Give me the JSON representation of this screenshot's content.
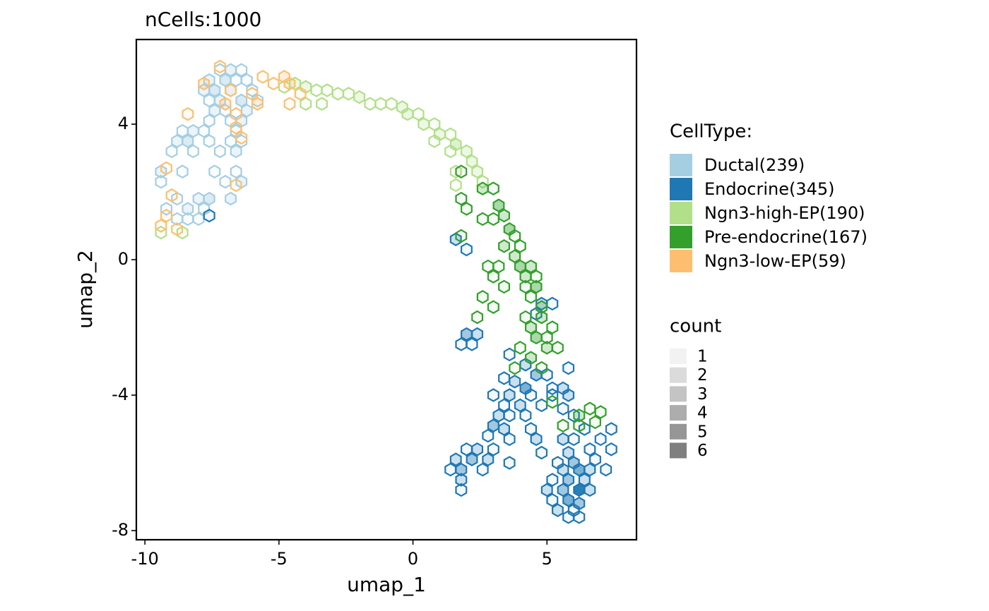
{
  "chart_data": {
    "type": "hexbin",
    "title": "nCells:1000",
    "x_label": "umap_1",
    "y_label": "umap_2",
    "xlim": [
      -10.32,
      8.34
    ],
    "ylim": [
      -8.27,
      6.5
    ],
    "xticks": [
      -10,
      -5,
      0,
      5
    ],
    "yticks": [
      -8,
      -4,
      0,
      4
    ],
    "legend_title": "CellType:",
    "series": [
      {
        "name": "Ductal(239)",
        "color": "#a6cee3",
        "x": [
          -7.2,
          -6.8,
          -6.4,
          -7.6,
          -7.0,
          -6.6,
          -6.2,
          -7.8,
          -7.4,
          -6.8,
          -6.0,
          -7.6,
          -7.2,
          -6.4,
          -5.8,
          -7.4,
          -7.0,
          -6.2,
          -7.6,
          -6.8,
          -6.4,
          -8.6,
          -8.2,
          -7.8,
          -6.6,
          -8.8,
          -8.4,
          -7.6,
          -6.8,
          -6.4,
          -9.0,
          -8.2,
          -7.2,
          -6.6,
          -9.4,
          -8.6,
          -7.4,
          -6.6,
          -9.4,
          -7.0,
          -6.4,
          -8.8,
          -8.0,
          -7.6,
          -6.8,
          -9.2,
          -8.4,
          -7.8,
          -8.8,
          -8.4,
          -8.0
        ],
        "y": [
          5.6,
          5.6,
          5.6,
          5.3,
          5.3,
          5.3,
          5.3,
          5.0,
          5.0,
          5.0,
          5.0,
          4.7,
          4.7,
          4.7,
          4.7,
          4.4,
          4.4,
          4.4,
          4.1,
          4.1,
          4.1,
          3.8,
          3.8,
          3.8,
          3.8,
          3.5,
          3.5,
          3.5,
          3.5,
          3.5,
          3.2,
          3.2,
          3.2,
          3.2,
          2.6,
          2.6,
          2.6,
          2.6,
          2.3,
          2.3,
          2.3,
          1.8,
          1.8,
          1.8,
          1.8,
          1.5,
          1.5,
          1.5,
          1.2,
          1.2,
          1.2
        ],
        "values": [
          1,
          2,
          1,
          2,
          3,
          1,
          1,
          2,
          3,
          2,
          1,
          1,
          2,
          3,
          1,
          2,
          1,
          2,
          1,
          1,
          2,
          1,
          2,
          1,
          1,
          2,
          3,
          1,
          1,
          1,
          1,
          1,
          1,
          2,
          2,
          1,
          1,
          1,
          1,
          1,
          2,
          1,
          2,
          3,
          2,
          1,
          2,
          1,
          1,
          1,
          1
        ]
      },
      {
        "name": "Endocrine(345)",
        "color": "#1f78b4",
        "x": [
          -7.6,
          1.6,
          2.0,
          4.8,
          5.2,
          4.6,
          2.0,
          2.4,
          2.2,
          1.8,
          3.6,
          4.2,
          4.6,
          5.0,
          5.8,
          3.4,
          3.8,
          4.2,
          5.2,
          5.6,
          3.0,
          3.6,
          4.4,
          5.2,
          5.8,
          3.4,
          4.0,
          4.8,
          5.6,
          3.2,
          3.6,
          4.2,
          6.0,
          3.0,
          3.4,
          4.4,
          6.4,
          7.4,
          2.8,
          3.6,
          4.6,
          5.6,
          6.0,
          7.0,
          2.0,
          2.4,
          3.0,
          4.8,
          5.8,
          6.6,
          7.4,
          1.6,
          2.2,
          2.8,
          5.4,
          6.0,
          6.8,
          1.4,
          1.8,
          2.6,
          3.6,
          5.6,
          6.2,
          6.6,
          7.2,
          1.8,
          5.2,
          5.8,
          6.4,
          1.8,
          5.0,
          5.6,
          6.2,
          6.6,
          5.2,
          5.8,
          6.2,
          5.4,
          6.0,
          5.8,
          6.2
        ],
        "y": [
          1.3,
          0.6,
          0.3,
          -1.3,
          -1.3,
          -1.6,
          -2.2,
          -2.2,
          -2.5,
          -2.5,
          -2.8,
          -3.1,
          -3.4,
          -3.4,
          -3.2,
          -3.5,
          -3.6,
          -3.8,
          -3.8,
          -3.8,
          -4.0,
          -4.0,
          -4.0,
          -4.0,
          -4.0,
          -4.3,
          -4.3,
          -4.3,
          -4.4,
          -4.6,
          -4.6,
          -4.6,
          -4.6,
          -4.9,
          -5.0,
          -5.0,
          -5.0,
          -5.0,
          -5.2,
          -5.3,
          -5.3,
          -5.3,
          -5.3,
          -5.3,
          -5.6,
          -5.6,
          -5.6,
          -5.7,
          -5.7,
          -5.6,
          -5.6,
          -5.9,
          -5.9,
          -5.9,
          -6.0,
          -6.0,
          -5.9,
          -6.2,
          -6.2,
          -6.2,
          -6.0,
          -6.2,
          -6.2,
          -6.2,
          -6.2,
          -6.5,
          -6.5,
          -6.5,
          -6.5,
          -6.8,
          -6.8,
          -6.8,
          -6.8,
          -6.8,
          -7.1,
          -7.1,
          -7.2,
          -7.4,
          -7.4,
          -7.6,
          -7.6
        ],
        "values": [
          1,
          2,
          1,
          2,
          1,
          1,
          3,
          2,
          1,
          1,
          1,
          2,
          3,
          1,
          1,
          1,
          2,
          4,
          1,
          2,
          1,
          2,
          1,
          1,
          2,
          1,
          2,
          1,
          1,
          2,
          1,
          1,
          1,
          3,
          2,
          1,
          1,
          1,
          1,
          1,
          2,
          2,
          1,
          1,
          1,
          2,
          1,
          1,
          2,
          1,
          1,
          2,
          3,
          2,
          1,
          3,
          1,
          1,
          3,
          1,
          1,
          2,
          4,
          2,
          1,
          2,
          1,
          3,
          2,
          1,
          2,
          3,
          6,
          2,
          1,
          4,
          3,
          2,
          1,
          1,
          1
        ]
      },
      {
        "name": "Ngn3-high-EP(190)",
        "color": "#b2df8a",
        "x": [
          -4.8,
          -4.4,
          -4.0,
          -3.6,
          -3.2,
          -2.8,
          -2.4,
          -2.0,
          -1.6,
          -1.2,
          -0.8,
          -0.4,
          -0.2,
          0.2,
          0.4,
          0.8,
          1.0,
          1.4,
          0.8,
          1.6,
          2.0,
          1.4,
          2.2,
          1.6,
          2.4,
          2.6,
          1.6,
          -9.4,
          -8.6,
          -4.0,
          -3.4
        ],
        "y": [
          5.1,
          5.2,
          5.1,
          5.0,
          5.0,
          4.9,
          4.9,
          4.8,
          4.6,
          4.6,
          4.6,
          4.5,
          4.3,
          4.3,
          4.0,
          4.0,
          3.7,
          3.7,
          3.5,
          3.4,
          3.2,
          3.2,
          2.9,
          2.6,
          2.6,
          2.3,
          2.2,
          0.8,
          0.8,
          4.6,
          4.6
        ],
        "values": [
          1,
          2,
          2,
          1,
          1,
          1,
          1,
          2,
          1,
          1,
          1,
          2,
          2,
          1,
          2,
          1,
          2,
          1,
          1,
          3,
          2,
          1,
          2,
          1,
          2,
          1,
          1,
          1,
          1,
          1,
          1
        ]
      },
      {
        "name": "Pre-endocrine(167)",
        "color": "#33a02c",
        "x": [
          1.8,
          2.6,
          3.0,
          1.8,
          2.0,
          3.2,
          3.4,
          2.6,
          3.0,
          3.6,
          1.8,
          3.8,
          3.4,
          4.0,
          3.8,
          2.8,
          3.2,
          4.0,
          4.4,
          3.0,
          4.2,
          4.6,
          3.4,
          4.2,
          4.6,
          2.6,
          4.4,
          3.0,
          4.8,
          2.4,
          4.2,
          4.8,
          4.4,
          5.2,
          4.6,
          5.0,
          4.0,
          5.0,
          5.4,
          4.4,
          3.8,
          4.8,
          5.2,
          6.2,
          6.6,
          7.0,
          5.6,
          6.2,
          6.8
        ],
        "y": [
          2.6,
          2.1,
          2.1,
          1.8,
          1.5,
          1.6,
          1.3,
          1.2,
          1.2,
          0.9,
          0.7,
          0.7,
          0.4,
          0.4,
          0.1,
          -0.2,
          -0.2,
          -0.2,
          -0.2,
          -0.5,
          -0.5,
          -0.5,
          -0.8,
          -0.8,
          -0.8,
          -1.1,
          -1.1,
          -1.4,
          -1.4,
          -1.7,
          -1.7,
          -1.7,
          -2.0,
          -2.0,
          -2.3,
          -2.3,
          -2.6,
          -2.6,
          -2.6,
          -2.9,
          -3.2,
          -3.2,
          -4.2,
          -4.6,
          -4.4,
          -4.5,
          -4.9,
          -4.9,
          -4.8
        ],
        "values": [
          1,
          2,
          1,
          1,
          1,
          3,
          2,
          1,
          1,
          3,
          1,
          1,
          2,
          1,
          2,
          1,
          1,
          3,
          2,
          1,
          2,
          1,
          1,
          1,
          3,
          1,
          1,
          1,
          2,
          1,
          1,
          2,
          2,
          1,
          3,
          1,
          1,
          2,
          1,
          2,
          1,
          1,
          1,
          2,
          1,
          1,
          1,
          1,
          1
        ]
      },
      {
        "name": "Ngn3-low-EP(59)",
        "color": "#fdbf6f",
        "x": [
          -7.2,
          -5.6,
          -4.8,
          -7.8,
          -6.8,
          -5.2,
          -4.6,
          -6.0,
          -7.0,
          -5.8,
          -4.6,
          -4.2,
          -6.6,
          -8.4,
          -6.6,
          -6.4,
          -9.2,
          -9.0,
          -6.6,
          -9.2,
          -8.8,
          -9.4
        ],
        "y": [
          5.7,
          5.4,
          5.4,
          5.2,
          5.0,
          5.2,
          5.2,
          4.9,
          4.6,
          4.6,
          4.6,
          4.9,
          4.3,
          4.3,
          3.9,
          3.6,
          2.7,
          1.9,
          2.2,
          1.3,
          0.9,
          1.0
        ],
        "values": [
          1,
          1,
          2,
          2,
          1,
          1,
          2,
          1,
          2,
          2,
          1,
          1,
          1,
          1,
          1,
          1,
          1,
          1,
          1,
          1,
          1,
          1
        ]
      }
    ],
    "count_legend": {
      "title": "count",
      "color": "#7f7f7f",
      "values": [
        1,
        2,
        3,
        4,
        5,
        6
      ]
    }
  }
}
